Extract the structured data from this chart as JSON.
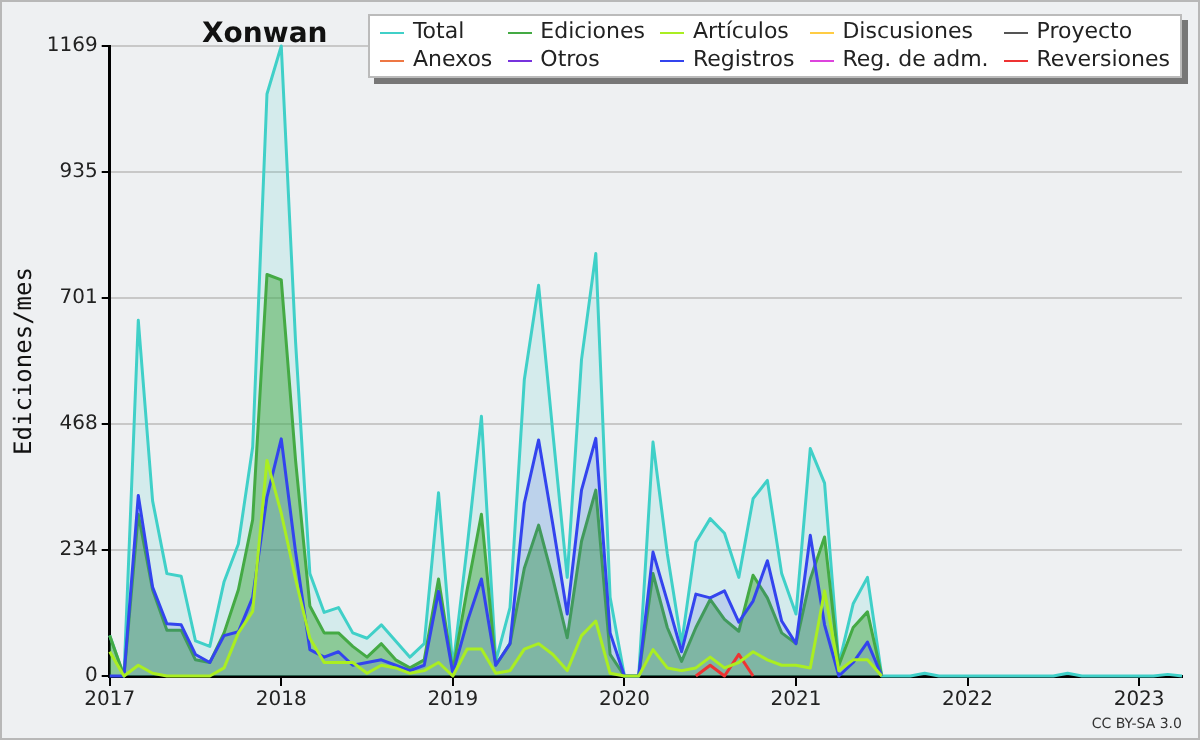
{
  "chart_data": {
    "type": "area",
    "title": "Xonwan",
    "ylabel": "Ediciones/mes",
    "x": [
      "2017-01",
      "2017-02",
      "2017-03",
      "2017-04",
      "2017-05",
      "2017-06",
      "2017-07",
      "2017-08",
      "2017-09",
      "2017-10",
      "2017-11",
      "2017-12",
      "2018-01",
      "2018-02",
      "2018-03",
      "2018-04",
      "2018-05",
      "2018-06",
      "2018-07",
      "2018-08",
      "2018-09",
      "2018-10",
      "2018-11",
      "2018-12",
      "2019-01",
      "2019-02",
      "2019-03",
      "2019-04",
      "2019-05",
      "2019-06",
      "2019-07",
      "2019-08",
      "2019-09",
      "2019-10",
      "2019-11",
      "2019-12",
      "2020-01",
      "2020-02",
      "2020-03",
      "2020-04",
      "2020-05",
      "2020-06",
      "2020-07",
      "2020-08",
      "2020-09",
      "2020-10",
      "2020-11",
      "2020-12",
      "2021-01",
      "2021-02",
      "2021-03",
      "2021-04",
      "2021-05",
      "2021-06",
      "2021-07",
      "2021-08",
      "2021-09",
      "2021-10",
      "2021-11",
      "2021-12",
      "2022-01",
      "2022-02",
      "2022-03",
      "2022-04",
      "2022-05",
      "2022-06",
      "2022-07",
      "2022-08",
      "2022-09",
      "2022-10",
      "2022-11",
      "2022-12",
      "2023-01",
      "2023-02",
      "2023-03",
      "2023-04"
    ],
    "series": [
      {
        "name": "Total",
        "type": "area",
        "color": "#40d0c8",
        "values": [
          75,
          0,
          660,
          325,
          190,
          185,
          65,
          55,
          175,
          245,
          425,
          1080,
          1169,
          620,
          190,
          118,
          127,
          80,
          70,
          95,
          65,
          35,
          60,
          340,
          15,
          239,
          482,
          27,
          127,
          550,
          725,
          450,
          183,
          587,
          784,
          146,
          0,
          0,
          434,
          227,
          60,
          248,
          292,
          265,
          183,
          329,
          363,
          190,
          115,
          422,
          358,
          22,
          134,
          183,
          0,
          0,
          0,
          5,
          0,
          0,
          0,
          0,
          0,
          0,
          0,
          0,
          0,
          5,
          0,
          0,
          0,
          0,
          0,
          0,
          3,
          0
        ]
      },
      {
        "name": "Ediciones",
        "type": "area",
        "color": "#44aa44",
        "values": [
          75,
          0,
          300,
          160,
          85,
          85,
          30,
          25,
          80,
          160,
          290,
          745,
          735,
          400,
          130,
          80,
          80,
          55,
          35,
          60,
          30,
          15,
          30,
          180,
          10,
          160,
          300,
          20,
          60,
          200,
          280,
          180,
          71,
          250,
          345,
          40,
          0,
          0,
          190,
          90,
          27,
          90,
          142,
          105,
          83,
          187,
          145,
          80,
          60,
          180,
          258,
          20,
          90,
          119,
          0,
          null,
          null,
          null,
          null,
          null,
          null,
          null,
          null,
          null,
          null,
          null,
          null,
          null,
          null,
          null,
          null,
          null,
          null,
          null,
          null,
          null
        ]
      },
      {
        "name": "Artículos",
        "type": "line",
        "color": "#aaee22",
        "values": [
          45,
          0,
          20,
          5,
          0,
          0,
          0,
          0,
          15,
          80,
          120,
          400,
          302,
          180,
          70,
          25,
          25,
          25,
          5,
          20,
          15,
          5,
          10,
          25,
          0,
          50,
          50,
          5,
          10,
          50,
          60,
          40,
          10,
          75,
          102,
          5,
          0,
          0,
          49,
          15,
          10,
          15,
          35,
          15,
          25,
          45,
          30,
          20,
          20,
          15,
          158,
          10,
          30,
          30,
          0,
          null,
          null,
          null,
          null,
          null,
          null,
          null,
          null,
          null,
          null,
          null,
          null,
          null,
          null,
          null,
          null,
          null,
          null,
          null,
          null,
          null
        ]
      },
      {
        "name": "Discusiones",
        "type": "line",
        "color": "#ffcc44",
        "values": [
          null,
          null,
          null,
          null,
          null,
          null,
          null,
          null,
          null,
          null,
          null,
          null,
          null,
          null,
          null,
          null,
          null,
          null,
          null,
          null,
          null,
          null,
          null,
          null,
          null,
          null,
          null,
          null,
          null,
          null,
          null,
          null,
          null,
          null,
          null,
          null,
          null,
          null,
          null,
          null,
          null,
          null,
          null,
          null,
          null,
          null,
          null,
          null,
          null,
          null,
          null,
          null,
          null,
          null,
          null,
          null,
          null,
          null,
          null,
          null,
          null,
          null,
          null,
          null,
          null,
          null,
          null,
          null,
          null,
          null,
          null,
          null,
          null,
          null,
          null,
          null
        ]
      },
      {
        "name": "Proyecto",
        "type": "line",
        "color": "#555555",
        "values": [
          null,
          null,
          null,
          null,
          null,
          null,
          null,
          null,
          null,
          null,
          null,
          null,
          null,
          null,
          null,
          null,
          null,
          null,
          null,
          null,
          null,
          null,
          null,
          null,
          null,
          null,
          null,
          null,
          null,
          null,
          null,
          null,
          null,
          null,
          null,
          null,
          null,
          null,
          null,
          null,
          null,
          null,
          null,
          null,
          null,
          null,
          null,
          null,
          null,
          null,
          null,
          null,
          null,
          null,
          null,
          null,
          null,
          null,
          null,
          null,
          null,
          null,
          null,
          null,
          null,
          null,
          null,
          null,
          null,
          null,
          null,
          null,
          null,
          null,
          null,
          null
        ]
      },
      {
        "name": "Anexos",
        "type": "line",
        "color": "#ee7744",
        "values": [
          null,
          null,
          null,
          null,
          null,
          null,
          null,
          null,
          null,
          null,
          null,
          null,
          null,
          null,
          null,
          null,
          null,
          null,
          null,
          null,
          null,
          null,
          null,
          null,
          null,
          null,
          null,
          null,
          null,
          null,
          null,
          null,
          null,
          null,
          null,
          null,
          null,
          null,
          null,
          null,
          null,
          null,
          null,
          null,
          null,
          null,
          null,
          null,
          null,
          null,
          null,
          null,
          null,
          null,
          null,
          null,
          null,
          null,
          null,
          null,
          null,
          null,
          null,
          null,
          null,
          null,
          null,
          null,
          null,
          null,
          null,
          null,
          null,
          null,
          null,
          null
        ]
      },
      {
        "name": "Otros",
        "type": "line",
        "color": "#7733dd",
        "values": [
          null,
          null,
          null,
          null,
          null,
          null,
          null,
          null,
          null,
          null,
          null,
          null,
          null,
          null,
          null,
          null,
          null,
          null,
          null,
          null,
          null,
          null,
          null,
          null,
          null,
          null,
          null,
          null,
          null,
          null,
          null,
          null,
          null,
          null,
          null,
          null,
          null,
          null,
          null,
          null,
          null,
          null,
          null,
          null,
          null,
          null,
          null,
          null,
          null,
          null,
          null,
          null,
          null,
          null,
          null,
          null,
          null,
          null,
          null,
          null,
          null,
          null,
          null,
          null,
          null,
          null,
          null,
          null,
          null,
          null,
          null,
          null,
          null,
          null,
          null,
          null
        ]
      },
      {
        "name": "Registros",
        "type": "area",
        "color": "#3344ee",
        "values": [
          0,
          0,
          335,
          165,
          97,
          95,
          40,
          25,
          75,
          82,
          146,
          332,
          440,
          230,
          49,
          35,
          45,
          20,
          25,
          30,
          20,
          10,
          20,
          157,
          5,
          100,
          180,
          20,
          60,
          321,
          438,
          280,
          115,
          345,
          441,
          80,
          0,
          0,
          230,
          139,
          45,
          152,
          145,
          158,
          100,
          139,
          214,
          102,
          60,
          261,
          95,
          0,
          25,
          63,
          0,
          null,
          null,
          null,
          null,
          null,
          null,
          null,
          null,
          null,
          null,
          null,
          null,
          null,
          null,
          null,
          null,
          null,
          null,
          null,
          null,
          null
        ]
      },
      {
        "name": "Reg. de adm.",
        "type": "line",
        "color": "#dd44dd",
        "values": [
          null,
          null,
          null,
          null,
          null,
          null,
          null,
          null,
          null,
          null,
          null,
          null,
          null,
          null,
          null,
          null,
          null,
          null,
          null,
          null,
          null,
          null,
          null,
          null,
          null,
          null,
          null,
          null,
          null,
          null,
          null,
          null,
          null,
          null,
          null,
          null,
          null,
          null,
          null,
          null,
          null,
          null,
          null,
          null,
          null,
          null,
          null,
          null,
          null,
          null,
          null,
          null,
          null,
          null,
          null,
          null,
          null,
          null,
          null,
          null,
          null,
          null,
          null,
          null,
          null,
          null,
          null,
          null,
          null,
          null,
          null,
          null,
          null,
          null,
          null,
          null
        ]
      },
      {
        "name": "Reversiones",
        "type": "line",
        "color": "#ee3333",
        "values": [
          null,
          null,
          null,
          null,
          null,
          null,
          null,
          null,
          null,
          null,
          null,
          null,
          null,
          null,
          null,
          null,
          null,
          null,
          null,
          null,
          null,
          null,
          null,
          null,
          null,
          null,
          null,
          null,
          null,
          null,
          null,
          null,
          null,
          null,
          null,
          null,
          null,
          null,
          null,
          null,
          null,
          0,
          20,
          0,
          40,
          0,
          null,
          null,
          null,
          null,
          null,
          null,
          null,
          null,
          null,
          null,
          null,
          null,
          null,
          null,
          null,
          null,
          null,
          null,
          null,
          null,
          null,
          null,
          null,
          null,
          null,
          null,
          null,
          null,
          null,
          null
        ]
      }
    ],
    "xlim": [
      "2017-01",
      "2023-04"
    ],
    "xticks": [
      "2017",
      "2018",
      "2019",
      "2020",
      "2021",
      "2022",
      "2023"
    ],
    "ylim": [
      0,
      1169
    ],
    "yticks": [
      0,
      234,
      468,
      701,
      935,
      1169
    ],
    "grid": "y",
    "legend": "top right",
    "marker": "none",
    "line_style": "solid",
    "annotations": [
      "CC BY-SA 3.0"
    ]
  }
}
